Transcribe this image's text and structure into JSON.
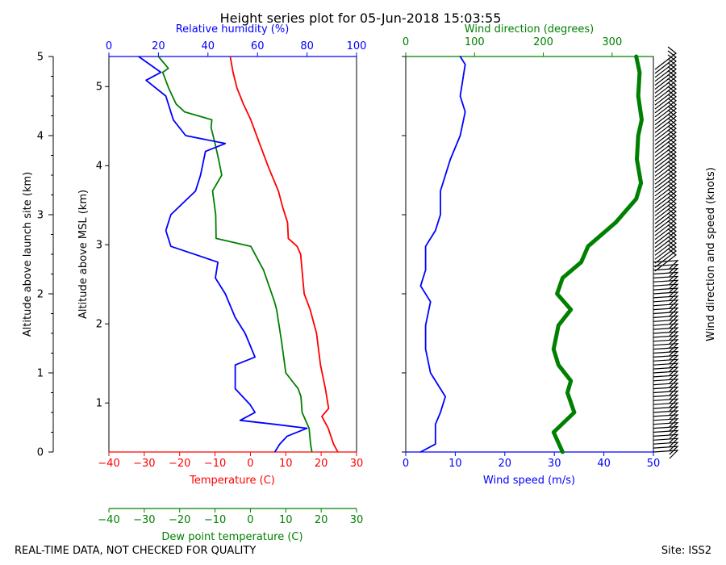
{
  "figure": {
    "title": "Height series plot for 05-Jun-2018 15:03:55",
    "footer_left": "REAL-TIME DATA, NOT CHECKED FOR QUALITY",
    "footer_right": "Site: ISS2",
    "colors": {
      "temperature": "#ff0000",
      "dewpoint": "#008000",
      "humidity": "#0000ff",
      "wind_speed": "#0000ff",
      "wind_direction": "#008000",
      "barbs": "#000000"
    }
  },
  "chart_data": [
    {
      "type": "line",
      "panel": "thermodynamic",
      "ylabel_outer": "Altitude above launch site (km)",
      "ylabel_inner": "Altitude above MSL (km)",
      "ylim_km_agl": [
        0,
        5
      ],
      "ylim_km_msl": [
        0.38,
        5.38
      ],
      "outer_yticks": [
        "0",
        "1",
        "2",
        "3",
        "4",
        "5"
      ],
      "inner_yticks": [
        "1",
        "2",
        "3",
        "4",
        "5"
      ],
      "axes": {
        "temperature": {
          "label": "Temperature (C)",
          "range": [
            -40,
            30
          ],
          "ticks": [
            "−40",
            "−30",
            "−20",
            "−10",
            "0",
            "10",
            "20",
            "30"
          ]
        },
        "dewpoint": {
          "label": "Dew point temperature (C)",
          "range": [
            -40,
            30
          ],
          "ticks": [
            "−40",
            "−30",
            "−20",
            "−10",
            "0",
            "10",
            "20",
            "30"
          ]
        },
        "humidity": {
          "label": "Relative humidity (%)",
          "range": [
            0,
            100
          ],
          "ticks": [
            "0",
            "20",
            "40",
            "60",
            "80",
            "100"
          ]
        }
      },
      "series": [
        {
          "key": "temperature",
          "axis": "temperature",
          "points": [
            [
              24.7,
              0
            ],
            [
              23.5,
              0.1
            ],
            [
              22.0,
              0.3
            ],
            [
              20.2,
              0.45
            ],
            [
              22.1,
              0.55
            ],
            [
              21.2,
              0.8
            ],
            [
              19.8,
              1.1
            ],
            [
              18.7,
              1.5
            ],
            [
              16.9,
              1.8
            ],
            [
              15.2,
              2.0
            ],
            [
              14.8,
              2.2
            ],
            [
              14.2,
              2.5
            ],
            [
              13.2,
              2.6
            ],
            [
              10.7,
              2.7
            ],
            [
              10.5,
              2.9
            ],
            [
              9.1,
              3.1
            ],
            [
              7.9,
              3.3
            ],
            [
              5.1,
              3.6
            ],
            [
              2.6,
              3.9
            ],
            [
              0.1,
              4.2
            ],
            [
              -2.0,
              4.4
            ],
            [
              -3.8,
              4.6
            ],
            [
              -4.9,
              4.8
            ],
            [
              -5.7,
              5.0
            ]
          ]
        },
        {
          "key": "dewpoint",
          "axis": "dewpoint",
          "points": [
            [
              17.4,
              0
            ],
            [
              17.0,
              0.1
            ],
            [
              16.6,
              0.3
            ],
            [
              14.6,
              0.5
            ],
            [
              14.3,
              0.7
            ],
            [
              13.5,
              0.8
            ],
            [
              10.0,
              1.0
            ],
            [
              8.8,
              1.4
            ],
            [
              7.4,
              1.8
            ],
            [
              6.8,
              1.9
            ],
            [
              3.7,
              2.3
            ],
            [
              0.1,
              2.6
            ],
            [
              -9.7,
              2.7
            ],
            [
              -9.8,
              3.0
            ],
            [
              -10.7,
              3.3
            ],
            [
              -8.1,
              3.5
            ],
            [
              -9.0,
              3.7
            ],
            [
              -10.0,
              3.9
            ],
            [
              -11.1,
              4.1
            ],
            [
              -10.9,
              4.2
            ],
            [
              -18.6,
              4.3
            ],
            [
              -21.0,
              4.4
            ],
            [
              -23.1,
              4.6
            ],
            [
              -24.8,
              4.8
            ],
            [
              -23.2,
              4.85
            ],
            [
              -26.0,
              5.0
            ]
          ]
        },
        {
          "key": "humidity",
          "axis": "humidity",
          "points": [
            [
              67,
              0
            ],
            [
              69,
              0.1
            ],
            [
              72,
              0.2
            ],
            [
              80,
              0.3
            ],
            [
              67,
              0.35
            ],
            [
              53,
              0.4
            ],
            [
              59,
              0.5
            ],
            [
              57,
              0.6
            ],
            [
              51,
              0.8
            ],
            [
              51,
              1.1
            ],
            [
              59,
              1.2
            ],
            [
              55,
              1.5
            ],
            [
              51,
              1.7
            ],
            [
              47,
              2.0
            ],
            [
              43,
              2.2
            ],
            [
              44,
              2.4
            ],
            [
              25,
              2.6
            ],
            [
              23,
              2.8
            ],
            [
              25,
              3.0
            ],
            [
              35,
              3.3
            ],
            [
              37,
              3.5
            ],
            [
              39,
              3.8
            ],
            [
              47,
              3.9
            ],
            [
              31,
              4.0
            ],
            [
              26,
              4.2
            ],
            [
              23,
              4.5
            ],
            [
              15,
              4.7
            ],
            [
              21,
              4.8
            ],
            [
              12,
              5.0
            ]
          ]
        }
      ]
    },
    {
      "type": "line",
      "panel": "wind",
      "ylim_km_agl": [
        0,
        5
      ],
      "axes": {
        "wind_speed": {
          "label": "Wind speed (m/s)",
          "range": [
            0,
            50
          ],
          "ticks": [
            "0",
            "10",
            "20",
            "30",
            "40",
            "50"
          ]
        },
        "wind_direction": {
          "label": "Wind direction (degrees)",
          "range": [
            0,
            360
          ],
          "ticks": [
            "0",
            "100",
            "200",
            "300"
          ]
        }
      },
      "series": [
        {
          "key": "wind_speed",
          "axis": "wind_speed",
          "points": [
            [
              3,
              0
            ],
            [
              6,
              0.1
            ],
            [
              6,
              0.35
            ],
            [
              7,
              0.5
            ],
            [
              8,
              0.7
            ],
            [
              5,
              1.0
            ],
            [
              4,
              1.3
            ],
            [
              4,
              1.6
            ],
            [
              5,
              1.9
            ],
            [
              3,
              2.1
            ],
            [
              4,
              2.3
            ],
            [
              4,
              2.6
            ],
            [
              6,
              2.8
            ],
            [
              7,
              3.0
            ],
            [
              7,
              3.3
            ],
            [
              9,
              3.7
            ],
            [
              11,
              4.0
            ],
            [
              12,
              4.3
            ],
            [
              11,
              4.5
            ],
            [
              12,
              4.9
            ],
            [
              11,
              5.0
            ]
          ]
        },
        {
          "key": "wind_direction",
          "axis": "wind_direction",
          "points": [
            [
              228,
              0
            ],
            [
              215,
              0.25
            ],
            [
              245,
              0.5
            ],
            [
              235,
              0.75
            ],
            [
              240,
              0.9
            ],
            [
              222,
              1.1
            ],
            [
              215,
              1.3
            ],
            [
              222,
              1.6
            ],
            [
              240,
              1.8
            ],
            [
              220,
              2.0
            ],
            [
              228,
              2.2
            ],
            [
              255,
              2.4
            ],
            [
              265,
              2.6
            ],
            [
              305,
              2.9
            ],
            [
              335,
              3.2
            ],
            [
              342,
              3.4
            ],
            [
              336,
              3.7
            ],
            [
              338,
              4.0
            ],
            [
              343,
              4.2
            ],
            [
              338,
              4.5
            ],
            [
              340,
              4.8
            ],
            [
              335,
              5.0
            ]
          ]
        }
      ]
    },
    {
      "type": "barbs",
      "panel": "wind_barbs",
      "label": "Wind direction and speed (knots)",
      "ylim_km_agl": [
        0,
        5
      ],
      "upper_level_km": 2.4
    }
  ]
}
